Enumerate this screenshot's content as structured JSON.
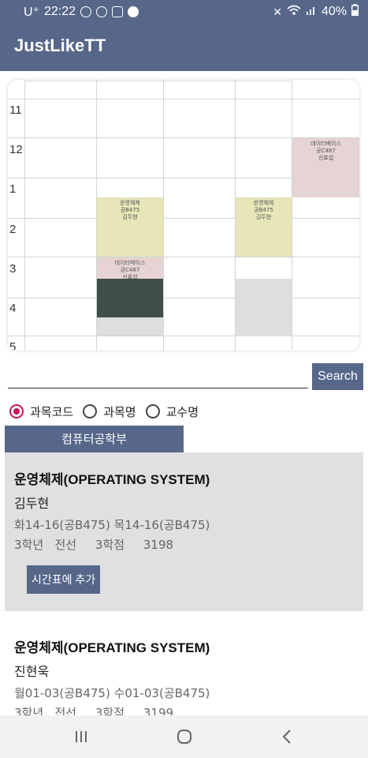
{
  "status_bar": {
    "carrier": "U⁺",
    "time": "22:22",
    "battery": "40%",
    "icons_left": [
      "usb-icon",
      "sync-icon",
      "gallery-icon",
      "wear-icon"
    ],
    "icons_right": [
      "mute-icon",
      "wifi-icon",
      "signal-icon",
      "battery-icon"
    ]
  },
  "app_bar": {
    "title": "JustLikeTT"
  },
  "timetable": {
    "hours": [
      "11",
      "12",
      "1",
      "2",
      "3",
      "4",
      "5"
    ],
    "blocks": [
      {
        "lines": [
          "데이터베이스",
          "공C487",
          "신효섭"
        ],
        "color": "#e6d3d3"
      },
      {
        "lines": [
          "운영체제",
          "공B475",
          "김두현"
        ],
        "color": "#e6e6b8"
      },
      {
        "lines": [
          "운영체제",
          "공B475",
          "김두현"
        ],
        "color": "#e6e6b8"
      },
      {
        "lines": [
          "데이터베이스",
          "공C487",
          "신효섭"
        ],
        "color": "#e6d3d3"
      }
    ],
    "highlight_color": "#3e4f4a",
    "empty_color": "#dedede"
  },
  "search": {
    "placeholder": "",
    "value": "",
    "button_label": "Search"
  },
  "filters": [
    {
      "label": "과목코드",
      "selected": true
    },
    {
      "label": "과목명",
      "selected": false
    },
    {
      "label": "교수명",
      "selected": false
    }
  ],
  "department_tab": "컴퓨터공학부",
  "courses": [
    {
      "name": "운영체제(OPERATING SYSTEM)",
      "professor": "김두현",
      "schedule": "화14-16(공B475) 목14-16(공B475)",
      "meta": "3학년   전선     3학점     3198",
      "add_label": "시간표에 추가"
    },
    {
      "name": "운영체제(OPERATING SYSTEM)",
      "professor": "진현욱",
      "schedule": "월01-03(공B475) 수01-03(공B475)",
      "meta": "3학년   전선     3학점     3199"
    }
  ],
  "accent_color": "#56678a"
}
